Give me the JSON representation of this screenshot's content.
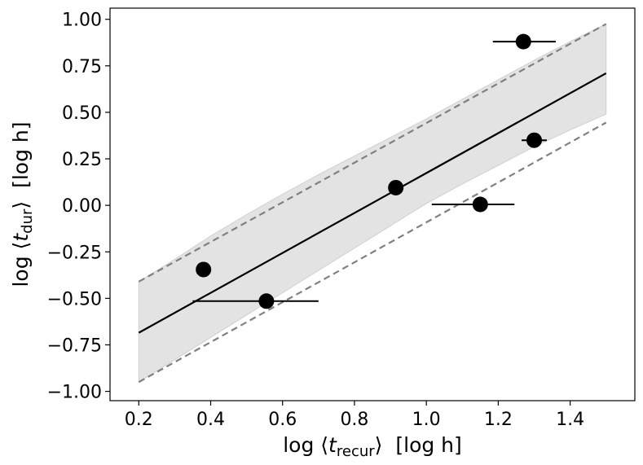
{
  "chart_data": {
    "type": "scatter",
    "title": "",
    "xlabel": {
      "prefix": "log",
      "open_bracket": "⟨",
      "var": "t",
      "sub": "recur",
      "close_bracket": "⟩",
      "units": "[log  h]"
    },
    "ylabel": {
      "prefix": "log",
      "open_bracket": "⟨",
      "var": "t",
      "sub": "dur",
      "close_bracket": "⟩",
      "units": "[log  h]"
    },
    "xlim": [
      0.12,
      1.58
    ],
    "ylim": [
      -1.05,
      1.06
    ],
    "xticks": [
      0.2,
      0.4,
      0.6,
      0.8,
      1.0,
      1.2,
      1.4
    ],
    "xtick_labels": [
      "0.2",
      "0.4",
      "0.6",
      "0.8",
      "1.0",
      "1.2",
      "1.4"
    ],
    "yticks": [
      1.0,
      0.75,
      0.5,
      0.25,
      0.0,
      -0.25,
      -0.5,
      -0.75,
      -1.0
    ],
    "ytick_labels": [
      "1.00",
      "0.75",
      "0.50",
      "0.25",
      "0.00",
      "−0.25",
      "−0.50",
      "−0.75",
      "−1.00"
    ],
    "points": [
      {
        "x": 0.38,
        "y": -0.345,
        "xerr": [
          0.0,
          0.0
        ],
        "yerr": [
          0.03,
          0.03
        ]
      },
      {
        "x": 0.555,
        "y": -0.515,
        "xerr": [
          0.205,
          0.145
        ],
        "yerr": [
          0.0,
          0.0
        ]
      },
      {
        "x": 0.915,
        "y": 0.095,
        "xerr": [
          0.0,
          0.0
        ],
        "yerr": [
          0.0,
          0.0
        ]
      },
      {
        "x": 1.15,
        "y": 0.005,
        "xerr": [
          0.135,
          0.095
        ],
        "yerr": [
          0.0,
          0.0
        ]
      },
      {
        "x": 1.27,
        "y": 0.88,
        "xerr": [
          0.085,
          0.09
        ],
        "yerr": [
          0.04,
          0.04
        ]
      },
      {
        "x": 1.3,
        "y": 0.35,
        "xerr": [
          0.035,
          0.035
        ],
        "yerr": [
          0.0,
          0.0
        ]
      }
    ],
    "fit_line": {
      "x": [
        0.2,
        1.5
      ],
      "y": [
        -0.685,
        0.71
      ]
    },
    "prediction_band": {
      "upper": {
        "x": [
          0.2,
          1.5
        ],
        "y": [
          -0.41,
          0.975
        ]
      },
      "lower": {
        "x": [
          0.2,
          1.5
        ],
        "y": [
          -0.95,
          0.445
        ]
      }
    },
    "confidence_band": {
      "x": [
        0.2,
        0.3,
        0.4,
        0.5,
        0.6,
        0.7,
        0.8,
        0.9,
        1.0,
        1.1,
        1.2,
        1.3,
        1.4,
        1.5
      ],
      "upper": [
        -0.41,
        -0.29,
        -0.165,
        -0.05,
        0.06,
        0.165,
        0.265,
        0.365,
        0.465,
        0.57,
        0.675,
        0.78,
        0.88,
        0.975
      ],
      "lower": [
        -0.95,
        -0.83,
        -0.71,
        -0.59,
        -0.47,
        -0.35,
        -0.23,
        -0.11,
        0.01,
        0.115,
        0.215,
        0.315,
        0.405,
        0.49
      ]
    },
    "colors": {
      "points": "#000000",
      "fit_line": "#000000",
      "dashed": "#808080",
      "band_fill": "#e3e3e3",
      "band_edge": "#d0d0d0"
    }
  }
}
